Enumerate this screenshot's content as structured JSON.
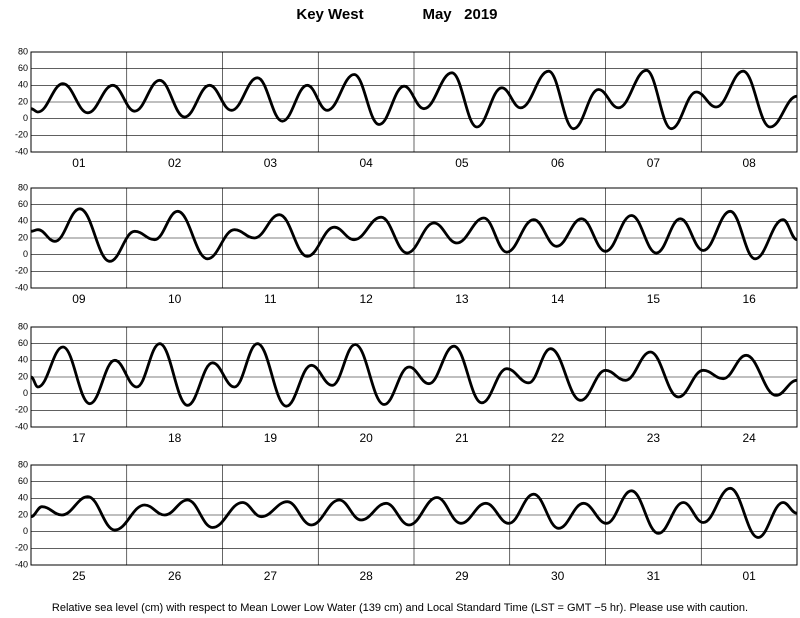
{
  "title": "Key West",
  "period": "May   2019",
  "footnote": "Relative sea level (cm) with respect to Mean Lower Low Water (139 cm) and Local Standard Time (LST = GMT −5 hr). Please use with caution.",
  "chart_data": [
    {
      "type": "line",
      "color": "#000000",
      "grid": true,
      "categories": [
        "01",
        "02",
        "03",
        "04",
        "05",
        "06",
        "07",
        "08"
      ],
      "xlim": [
        0,
        192
      ],
      "xticks": [
        0,
        24,
        48,
        72,
        96,
        120,
        144,
        168,
        192
      ],
      "ylim": [
        -40,
        80
      ],
      "yticks": [
        -40,
        -20,
        0,
        20,
        40,
        60,
        80
      ],
      "x": [
        0,
        1.75,
        8,
        14.25,
        20.5,
        26,
        32.25,
        38.5,
        44.75,
        50.25,
        56.75,
        63,
        69.25,
        74.25,
        81,
        87.25,
        93.5,
        98.5,
        105.5,
        111.75,
        118,
        122.75,
        129.75,
        136,
        142.25,
        147.25,
        154.25,
        160.5,
        166.75,
        171.75,
        178.5,
        185.25,
        192
      ],
      "values": [
        12,
        8,
        42,
        7,
        40,
        9,
        46,
        2,
        40,
        10,
        49,
        -3,
        40,
        10,
        53,
        -7,
        39,
        12,
        55,
        -10,
        37,
        13,
        57,
        -12,
        35,
        13,
        58,
        -12,
        32,
        14,
        57,
        -10,
        27
      ]
    },
    {
      "type": "line",
      "color": "#000000",
      "grid": true,
      "categories": [
        "09",
        "10",
        "11",
        "12",
        "13",
        "14",
        "15",
        "16"
      ],
      "xlim": [
        0,
        192
      ],
      "xticks": [
        0,
        24,
        48,
        72,
        96,
        120,
        144,
        168,
        192
      ],
      "ylim": [
        -40,
        80
      ],
      "yticks": [
        -40,
        -20,
        0,
        20,
        40,
        60,
        80
      ],
      "x": [
        0,
        1.75,
        6,
        12.25,
        19.75,
        26,
        31,
        36.75,
        44.25,
        51,
        56,
        62.25,
        69.25,
        76,
        81,
        87.75,
        94.25,
        101,
        106.75,
        113.5,
        119.25,
        126,
        131.75,
        138,
        144,
        150.5,
        156.75,
        162.75,
        168.5,
        175.25,
        181.5,
        188.5,
        192
      ],
      "values": [
        28,
        30,
        16,
        55,
        -8,
        28,
        18,
        52,
        -5,
        30,
        20,
        48,
        -2,
        33,
        18,
        45,
        2,
        38,
        14,
        44,
        3,
        42,
        10,
        43,
        4,
        47,
        2,
        43,
        5,
        52,
        -5,
        42,
        18
      ]
    },
    {
      "type": "line",
      "color": "#000000",
      "grid": true,
      "categories": [
        "17",
        "18",
        "19",
        "20",
        "21",
        "22",
        "23",
        "24"
      ],
      "xlim": [
        0,
        192
      ],
      "xticks": [
        0,
        24,
        48,
        72,
        96,
        120,
        144,
        168,
        192
      ],
      "ylim": [
        -40,
        80
      ],
      "yticks": [
        -40,
        -20,
        0,
        20,
        40,
        60,
        80
      ],
      "x": [
        0,
        1.75,
        8,
        14.75,
        21,
        26.5,
        32.25,
        39.25,
        45.5,
        51,
        56.75,
        64,
        70.25,
        75.5,
        81.25,
        88.5,
        94.75,
        99.75,
        106,
        113,
        119.25,
        124.75,
        130.25,
        137.75,
        144,
        149,
        155.25,
        162.25,
        168.5,
        173.5,
        179.25,
        186.75,
        192
      ],
      "values": [
        20,
        8,
        56,
        -12,
        40,
        8,
        60,
        -14,
        37,
        8,
        60,
        -15,
        34,
        10,
        59,
        -13,
        32,
        12,
        57,
        -11,
        30,
        13,
        54,
        -8,
        28,
        16,
        50,
        -4,
        28,
        18,
        46,
        -2,
        16
      ]
    },
    {
      "type": "line",
      "color": "#000000",
      "grid": true,
      "categories": [
        "25",
        "26",
        "27",
        "28",
        "29",
        "30",
        "31",
        "01"
      ],
      "xlim": [
        0,
        192
      ],
      "xticks": [
        0,
        24,
        48,
        72,
        96,
        120,
        144,
        168,
        192
      ],
      "ylim": [
        -40,
        80
      ],
      "yticks": [
        -40,
        -20,
        0,
        20,
        40,
        60,
        80
      ],
      "x": [
        0,
        2.75,
        7.75,
        14.25,
        21,
        28.5,
        33.5,
        39.25,
        45.5,
        53,
        57.75,
        64.25,
        70.25,
        77.25,
        82.75,
        89,
        94.75,
        101.75,
        107.75,
        114,
        119.75,
        126,
        132.25,
        138.5,
        144.25,
        150.5,
        157.25,
        163.5,
        168.5,
        175.25,
        182.25,
        188.5,
        192
      ],
      "values": [
        18,
        30,
        20,
        42,
        2,
        32,
        20,
        38,
        5,
        35,
        18,
        36,
        8,
        38,
        14,
        34,
        8,
        41,
        10,
        34,
        10,
        45,
        4,
        34,
        10,
        49,
        -2,
        35,
        11,
        52,
        -7,
        35,
        22
      ]
    }
  ]
}
